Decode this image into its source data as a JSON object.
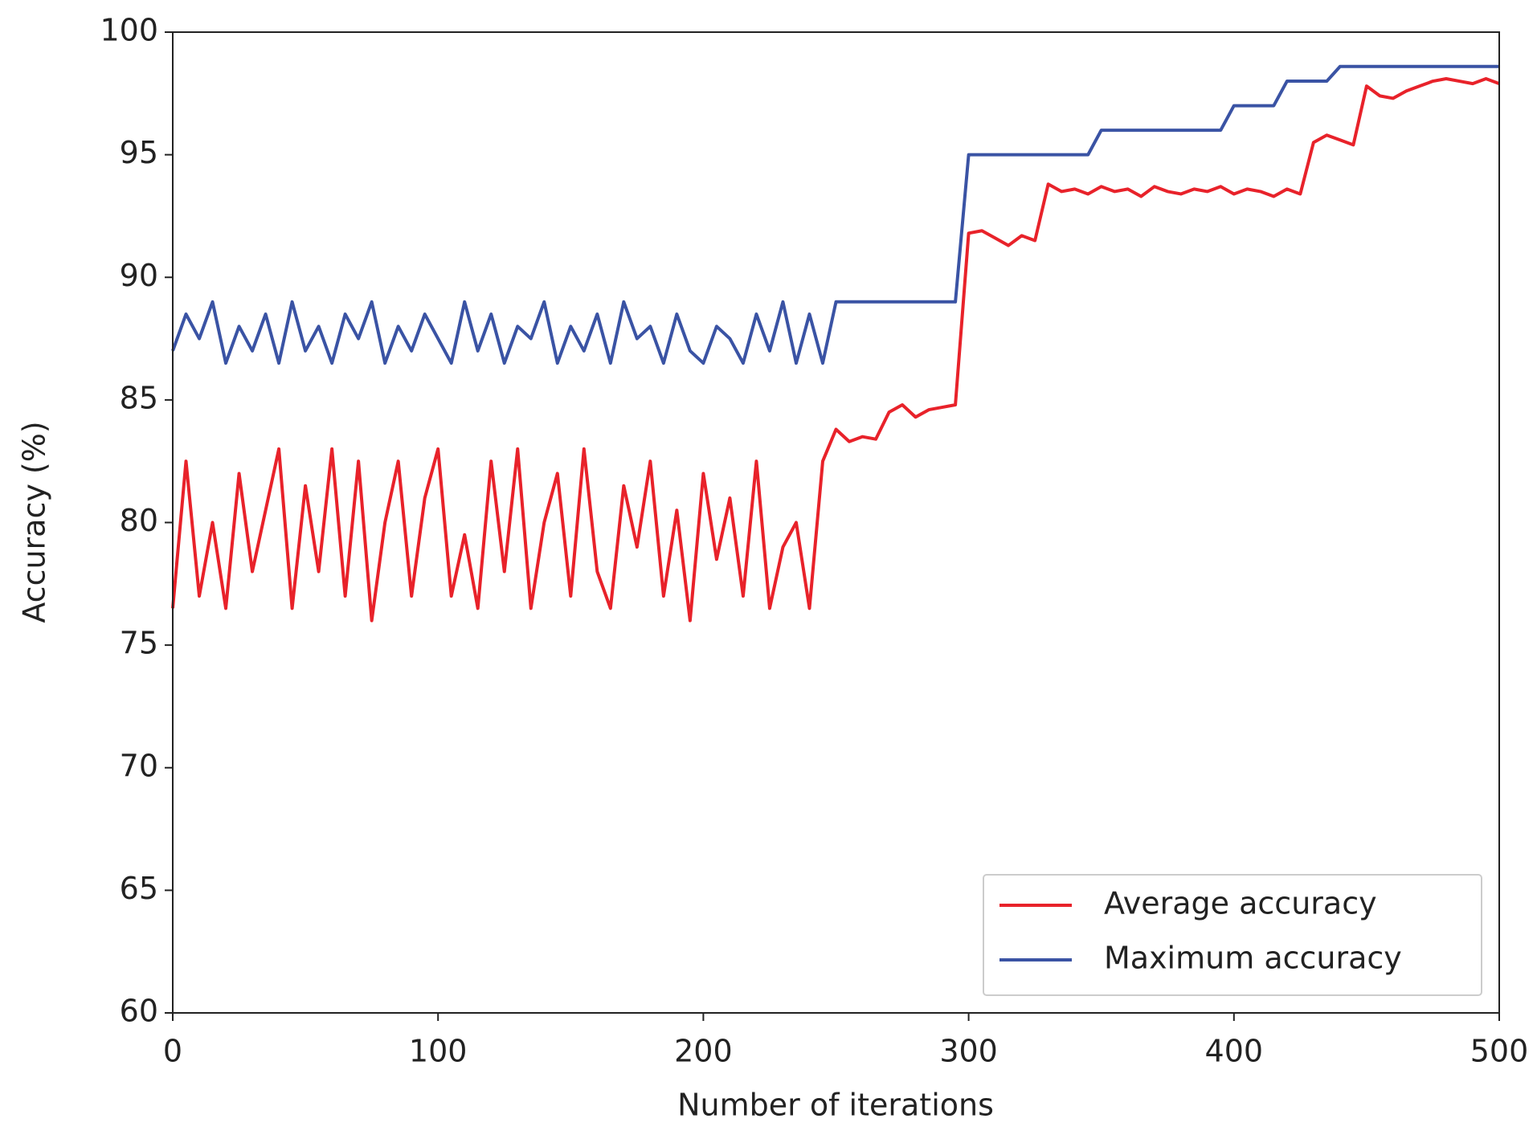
{
  "chart_data": {
    "type": "line",
    "x_label": "Number of iterations",
    "y_label": "Accuracy (%)",
    "x": [
      0,
      5,
      10,
      15,
      20,
      25,
      30,
      35,
      40,
      45,
      50,
      55,
      60,
      65,
      70,
      75,
      80,
      85,
      90,
      95,
      100,
      105,
      110,
      115,
      120,
      125,
      130,
      135,
      140,
      145,
      150,
      155,
      160,
      165,
      170,
      175,
      180,
      185,
      190,
      195,
      200,
      205,
      210,
      215,
      220,
      225,
      230,
      235,
      240,
      245,
      250,
      255,
      260,
      265,
      270,
      275,
      280,
      285,
      290,
      295,
      300,
      305,
      310,
      315,
      320,
      325,
      330,
      335,
      340,
      345,
      350,
      355,
      360,
      365,
      370,
      375,
      380,
      385,
      390,
      395,
      400,
      405,
      410,
      415,
      420,
      425,
      430,
      435,
      440,
      445,
      450,
      455,
      460,
      465,
      470,
      475,
      480,
      485,
      490,
      495,
      500
    ],
    "series": [
      {
        "name": "Average accuracy",
        "color": "#e8222a",
        "values": [
          76.5,
          82.5,
          77,
          80,
          76.5,
          82,
          78,
          80.5,
          83,
          76.5,
          81.5,
          78,
          83,
          77,
          82.5,
          76,
          80,
          82.5,
          77,
          81,
          83,
          77,
          79.5,
          76.5,
          82.5,
          78,
          83,
          76.5,
          80,
          82,
          77,
          83,
          78,
          76.5,
          81.5,
          79,
          82.5,
          77,
          80.5,
          76,
          82,
          78.5,
          81,
          77,
          82.5,
          76.5,
          79,
          80,
          76.5,
          82.5,
          83.8,
          83.3,
          83.5,
          83.4,
          84.5,
          84.8,
          84.3,
          84.6,
          84.7,
          84.8,
          91.8,
          91.9,
          91.6,
          91.3,
          91.7,
          91.5,
          93.8,
          93.5,
          93.6,
          93.4,
          93.7,
          93.5,
          93.6,
          93.3,
          93.7,
          93.5,
          93.4,
          93.6,
          93.5,
          93.7,
          93.4,
          93.6,
          93.5,
          93.3,
          93.6,
          93.4,
          95.5,
          95.8,
          95.6,
          95.4,
          97.8,
          97.4,
          97.3,
          97.6,
          97.8,
          98.0,
          98.1,
          98.0,
          97.9,
          98.1,
          97.9
        ]
      },
      {
        "name": "Maximum accuracy",
        "color": "#3a53a4",
        "values": [
          87,
          88.5,
          87.5,
          89,
          86.5,
          88,
          87,
          88.5,
          86.5,
          89,
          87,
          88,
          86.5,
          88.5,
          87.5,
          89,
          86.5,
          88,
          87,
          88.5,
          87.5,
          86.5,
          89,
          87,
          88.5,
          86.5,
          88,
          87.5,
          89,
          86.5,
          88,
          87,
          88.5,
          86.5,
          89,
          87.5,
          88,
          86.5,
          88.5,
          87,
          86.5,
          88,
          87.5,
          86.5,
          88.5,
          87,
          89,
          86.5,
          88.5,
          86.5,
          89,
          89,
          89,
          89,
          89,
          89,
          89,
          89,
          89,
          89,
          95,
          95,
          95,
          95,
          95,
          95,
          95,
          95,
          95,
          95,
          96,
          96,
          96,
          96,
          96,
          96,
          96,
          96,
          96,
          96,
          97,
          97,
          97,
          97,
          98,
          98,
          98,
          98,
          98.6,
          98.6,
          98.6,
          98.6,
          98.6,
          98.6,
          98.6,
          98.6,
          98.6,
          98.6,
          98.6,
          98.6,
          98.6
        ]
      }
    ],
    "xlim": [
      0,
      500
    ],
    "xticks": [
      0,
      100,
      200,
      300,
      400,
      500
    ],
    "ylim": [
      60,
      100
    ],
    "yticks": [
      60,
      65,
      70,
      75,
      80,
      85,
      90,
      95,
      100
    ],
    "legend": "lower right",
    "grid": false
  }
}
